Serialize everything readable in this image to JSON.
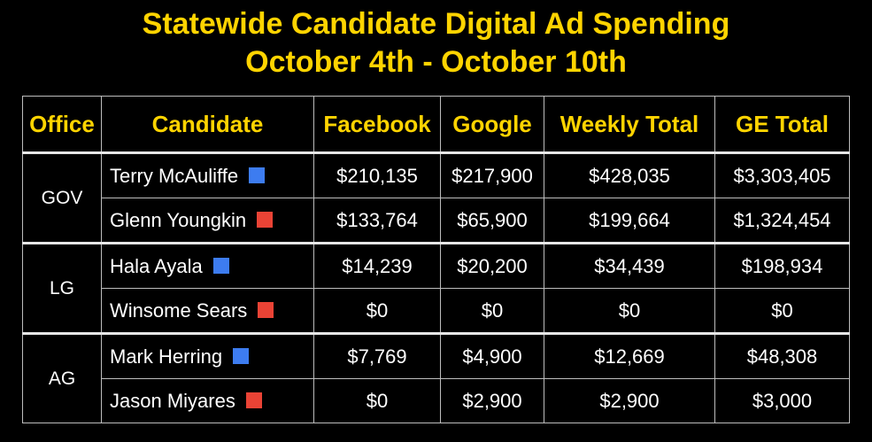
{
  "title": {
    "line1": "Statewide Candidate Digital Ad Spending",
    "line2": "October 4th - October 10th"
  },
  "colors": {
    "background": "#000000",
    "title_text": "#FFD400",
    "header_text": "#FFD400",
    "body_text": "#FFFFFF",
    "democrat_marker": "#3D7CF0",
    "republican_marker": "#EA4335"
  },
  "table": {
    "headers": [
      "Office",
      "Candidate",
      "Facebook",
      "Google",
      "Weekly Total",
      "GE Total"
    ],
    "groups": [
      {
        "office": "GOV",
        "rows": [
          {
            "candidate": "Terry McAuliffe",
            "marker": "blue-square",
            "facebook": "$210,135",
            "google": "$217,900",
            "weekly_total": "$428,035",
            "ge_total": "$3,303,405"
          },
          {
            "candidate": "Glenn Youngkin",
            "marker": "red-square",
            "facebook": "$133,764",
            "google": "$65,900",
            "weekly_total": "$199,664",
            "ge_total": "$1,324,454"
          }
        ]
      },
      {
        "office": "LG",
        "rows": [
          {
            "candidate": "Hala Ayala",
            "marker": "blue-square",
            "facebook": "$14,239",
            "google": "$20,200",
            "weekly_total": "$34,439",
            "ge_total": "$198,934"
          },
          {
            "candidate": "Winsome Sears",
            "marker": "red-square",
            "facebook": "$0",
            "google": "$0",
            "weekly_total": "$0",
            "ge_total": "$0"
          }
        ]
      },
      {
        "office": "AG",
        "rows": [
          {
            "candidate": "Mark Herring",
            "marker": "blue-square",
            "facebook": "$7,769",
            "google": "$4,900",
            "weekly_total": "$12,669",
            "ge_total": "$48,308"
          },
          {
            "candidate": "Jason Miyares",
            "marker": "red-square",
            "facebook": "$0",
            "google": "$2,900",
            "weekly_total": "$2,900",
            "ge_total": "$3,000"
          }
        ]
      }
    ]
  }
}
